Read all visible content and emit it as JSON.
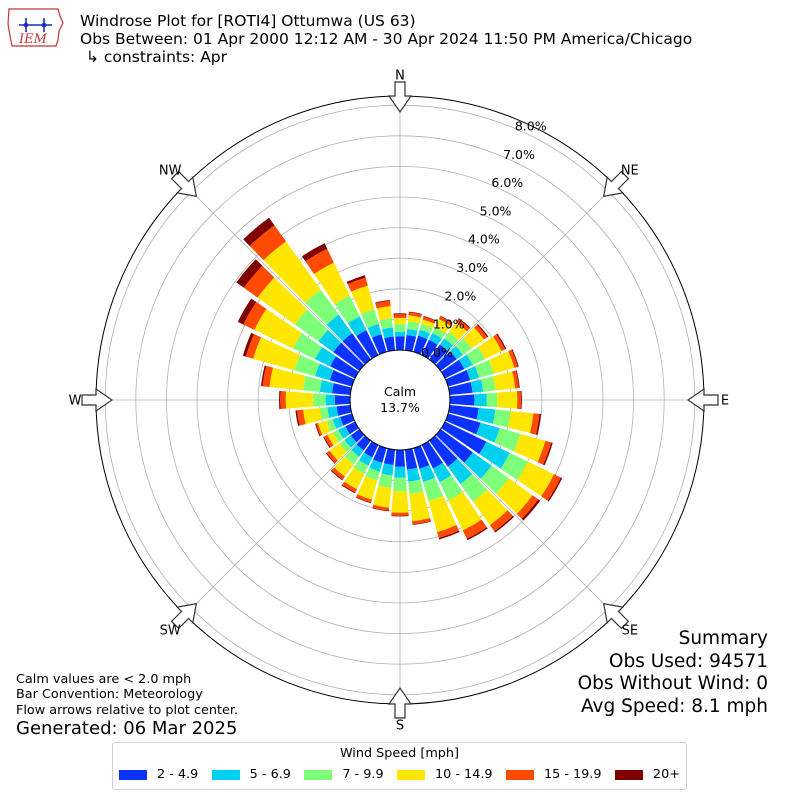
{
  "header": {
    "logo_text": "IEM",
    "title_line1": "Windrose Plot for [ROTI4] Ottumwa (US 63)",
    "title_line2": "Obs Between: 01 Apr 2000 12:12 AM - 30 Apr 2024 11:50 PM America/Chicago",
    "title_line3": "↳ constraints: Apr"
  },
  "summary": {
    "title": "Summary",
    "obs_used": "Obs Used: 94571",
    "obs_without_wind": "Obs Without Wind: 0",
    "avg_speed": "Avg Speed: 8.1 mph"
  },
  "notes": {
    "calm_note": "Calm values are < 2.0 mph",
    "bar_convention": "Bar Convention: Meteorology",
    "flow_note": "Flow arrows relative to plot center.",
    "generated": "Generated: 06 Mar 2025"
  },
  "calm": {
    "label": "Calm",
    "value": "13.7%"
  },
  "compass": {
    "N": "N",
    "NE": "NE",
    "E": "E",
    "SE": "SE",
    "S": "S",
    "SW": "SW",
    "W": "W",
    "NW": "NW"
  },
  "chart_data": {
    "type": "windrose",
    "title": "Windrose Plot for [ROTI4] Ottumwa (US 63)",
    "radial_labels": [
      "0.0%",
      "1.0%",
      "2.0%",
      "3.0%",
      "4.0%",
      "5.0%",
      "6.0%",
      "7.0%",
      "8.0%"
    ],
    "radial_range": [
      0,
      8
    ],
    "directions_deg": [
      0,
      10,
      20,
      30,
      40,
      50,
      60,
      70,
      80,
      90,
      100,
      110,
      120,
      130,
      140,
      150,
      160,
      170,
      180,
      190,
      200,
      210,
      220,
      230,
      240,
      250,
      260,
      270,
      280,
      290,
      300,
      310,
      320,
      330,
      340,
      350
    ],
    "legend_title": "Wind Speed [mph]",
    "bins": [
      {
        "label": "2 - 4.9",
        "color": "#0a33ff"
      },
      {
        "label": "5 - 6.9",
        "color": "#00d0f0"
      },
      {
        "label": "7 - 9.9",
        "color": "#7dff7a"
      },
      {
        "label": "10 - 14.9",
        "color": "#ffe600"
      },
      {
        "label": "15 - 19.9",
        "color": "#ff4a00"
      },
      {
        "label": "20+",
        "color": "#800000"
      }
    ],
    "cumulative_percent": [
      [
        0.45,
        0.6,
        0.85,
        1.05,
        1.17,
        1.2
      ],
      [
        0.5,
        0.7,
        0.95,
        1.15,
        1.25,
        1.27
      ],
      [
        0.55,
        0.75,
        0.95,
        1.1,
        1.2,
        1.22
      ],
      [
        0.55,
        0.8,
        1.0,
        1.3,
        1.4,
        1.42
      ],
      [
        0.6,
        0.85,
        1.1,
        1.5,
        1.63,
        1.66
      ],
      [
        0.65,
        0.9,
        1.25,
        1.75,
        1.88,
        1.92
      ],
      [
        0.7,
        1.0,
        1.45,
        2.05,
        2.18,
        2.22
      ],
      [
        0.75,
        1.05,
        1.55,
        2.25,
        2.37,
        2.4
      ],
      [
        0.75,
        1.1,
        1.5,
        2.15,
        2.27,
        2.3
      ],
      [
        0.8,
        1.2,
        1.55,
        2.2,
        2.32,
        2.35
      ],
      [
        0.95,
        1.5,
        2.0,
        2.75,
        2.95,
        3.0
      ],
      [
        1.1,
        1.75,
        2.45,
        3.3,
        3.5,
        3.55
      ],
      [
        1.5,
        2.35,
        3.0,
        3.95,
        4.2,
        4.25
      ],
      [
        1.3,
        2.05,
        2.75,
        3.7,
        3.93,
        4.0
      ],
      [
        1.05,
        1.75,
        2.45,
        3.4,
        3.65,
        3.7
      ],
      [
        0.85,
        1.35,
        2.0,
        3.1,
        3.4,
        3.45
      ],
      [
        0.7,
        1.15,
        1.8,
        2.85,
        3.05,
        3.1
      ],
      [
        0.65,
        1.05,
        1.45,
        2.35,
        2.45,
        2.47
      ],
      [
        0.55,
        0.9,
        1.35,
        2.05,
        2.15,
        2.17
      ],
      [
        0.5,
        0.85,
        1.25,
        1.9,
        2.0,
        2.02
      ],
      [
        0.5,
        0.8,
        1.1,
        1.75,
        1.85,
        1.87
      ],
      [
        0.45,
        0.75,
        1.05,
        1.6,
        1.72,
        1.75
      ],
      [
        0.4,
        0.65,
        0.95,
        1.45,
        1.57,
        1.6
      ],
      [
        0.35,
        0.6,
        0.8,
        1.2,
        1.32,
        1.35
      ],
      [
        0.35,
        0.6,
        0.8,
        1.0,
        1.12,
        1.15
      ],
      [
        0.4,
        0.65,
        0.85,
        1.15,
        1.22,
        1.25
      ],
      [
        0.45,
        0.75,
        1.0,
        1.55,
        1.75,
        1.8
      ],
      [
        0.5,
        0.8,
        1.2,
        2.1,
        2.28,
        2.32
      ],
      [
        0.6,
        1.0,
        1.55,
        2.65,
        2.88,
        2.93
      ],
      [
        0.75,
        1.25,
        1.95,
        3.35,
        3.6,
        3.7
      ],
      [
        0.9,
        1.45,
        2.25,
        3.65,
        4.05,
        4.25
      ],
      [
        1.05,
        1.65,
        2.6,
        4.1,
        4.65,
        4.95
      ],
      [
        1.05,
        1.8,
        2.8,
        4.75,
        5.4,
        5.7
      ],
      [
        0.9,
        1.4,
        2.15,
        3.35,
        3.85,
        4.05
      ],
      [
        0.6,
        0.95,
        1.45,
        2.25,
        2.52,
        2.6
      ],
      [
        0.45,
        0.75,
        1.05,
        1.45,
        1.62,
        1.65
      ]
    ]
  }
}
